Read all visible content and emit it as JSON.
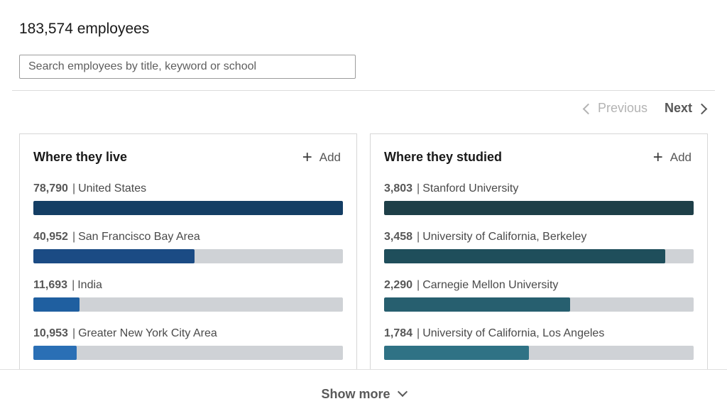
{
  "header": {
    "employee_count": "183,574 employees"
  },
  "search": {
    "placeholder": "Search employees by title, keyword or school"
  },
  "pager": {
    "previous": "Previous",
    "next": "Next"
  },
  "cards": [
    {
      "title": "Where they live",
      "add_label": "Add",
      "rows": [
        {
          "count": "78,790",
          "label": "United States",
          "fraction": 1.0,
          "color": "#143e64"
        },
        {
          "count": "40,952",
          "label": "San Francisco Bay Area",
          "fraction": 0.52,
          "color": "#1b4b84"
        },
        {
          "count": "11,693",
          "label": "India",
          "fraction": 0.148,
          "color": "#1f5fa0"
        },
        {
          "count": "10,953",
          "label": "Greater New York City Area",
          "fraction": 0.139,
          "color": "#2a6fb5"
        }
      ]
    },
    {
      "title": "Where they studied",
      "add_label": "Add",
      "rows": [
        {
          "count": "3,803",
          "label": "Stanford University",
          "fraction": 1.0,
          "color": "#1e3f48"
        },
        {
          "count": "3,458",
          "label": "University of California, Berkeley",
          "fraction": 0.909,
          "color": "#1f4e5b"
        },
        {
          "count": "2,290",
          "label": "Carnegie Mellon University",
          "fraction": 0.602,
          "color": "#275f6f"
        },
        {
          "count": "1,784",
          "label": "University of California, Los Angeles",
          "fraction": 0.469,
          "color": "#2f7285"
        }
      ]
    }
  ],
  "footer": {
    "show_more": "Show more"
  }
}
